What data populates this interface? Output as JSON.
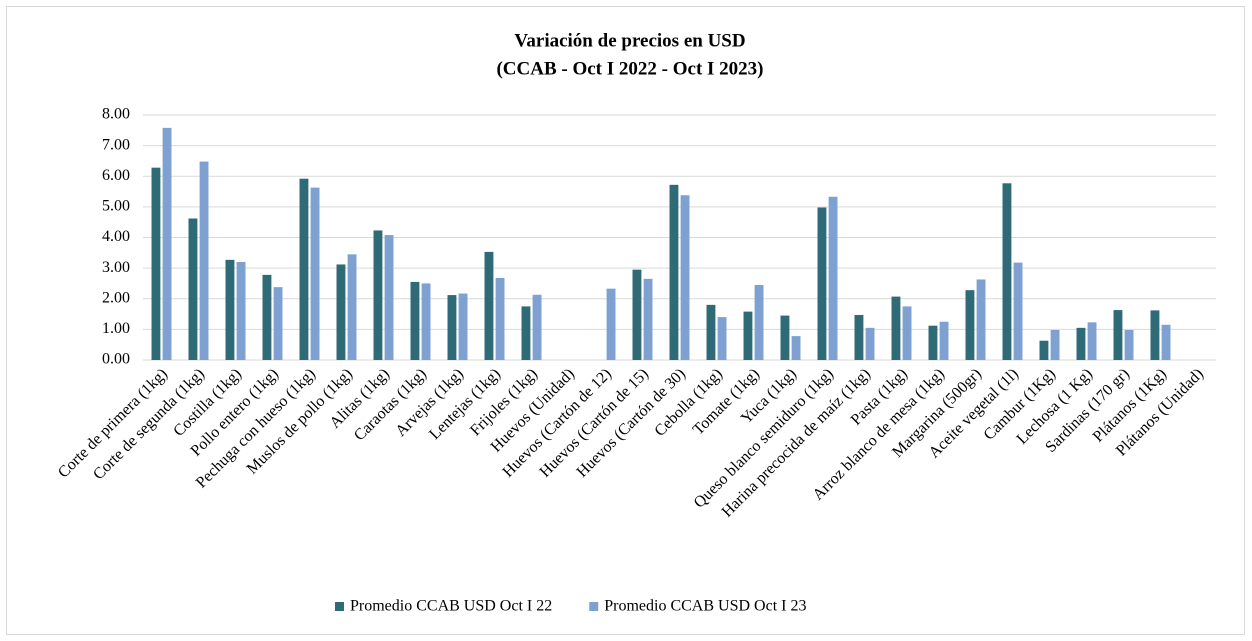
{
  "chart_data": {
    "type": "bar",
    "title": "Variación de precios en USD",
    "subtitle": "(CCAB - Oct I 2022 - Oct I 2023)",
    "categories": [
      "Corte de primera (1kg)",
      "Corte de segunda (1kg)",
      "Costilla (1kg)",
      "Pollo entero (1kg)",
      "Pechuga con hueso (1kg)",
      "Muslos de pollo (1kg)",
      "Alitas (1kg)",
      "Caraotas (1kg)",
      "Arvejas (1kg)",
      "Lentejas (1kg)",
      "Frijoles (1kg)",
      "Huevos (Unidad)",
      "Huevos (Cartón de 12)",
      "Huevos (Cartón de 15)",
      "Huevos (Cartón de 30)",
      "Cebolla (1kg)",
      "Tomate (1kg)",
      "Yuca (1kg)",
      "Queso blanco semiduro (1kg)",
      "Harina precocida de maíz (1kg)",
      "Pasta (1kg)",
      "Arroz blanco de mesa (1kg)",
      "Margarina (500gr)",
      "Aceite vegetal (1l)",
      "Cambur (1Kg)",
      "Lechosa (1 Kg)",
      "Sardinas (170 gr)",
      "Plátanos (1Kg)",
      "Plátanos (Unidad)"
    ],
    "series": [
      {
        "name": "Promedio CCAB USD Oct I 22",
        "color": "#2e6b76",
        "values": [
          6.28,
          4.62,
          3.27,
          2.78,
          5.92,
          3.12,
          4.23,
          2.55,
          2.12,
          3.53,
          1.75,
          null,
          null,
          2.95,
          5.72,
          1.8,
          1.58,
          1.45,
          4.98,
          1.47,
          2.07,
          1.12,
          2.28,
          5.77,
          0.63,
          1.05,
          1.63,
          1.62,
          null
        ]
      },
      {
        "name": "Promedio CCAB USD Oct I 23",
        "color": "#7fa1d2",
        "values": [
          7.58,
          6.48,
          3.2,
          2.38,
          5.63,
          3.45,
          4.08,
          2.5,
          2.17,
          2.68,
          2.13,
          null,
          2.33,
          2.65,
          5.38,
          1.4,
          2.45,
          0.78,
          5.33,
          1.05,
          1.75,
          1.25,
          2.63,
          3.18,
          0.98,
          1.23,
          0.98,
          1.15,
          null
        ]
      }
    ],
    "ylim": [
      0,
      8
    ],
    "yticks": [
      {
        "value": 0,
        "label": "0.00"
      },
      {
        "value": 1,
        "label": "1.00"
      },
      {
        "value": 2,
        "label": "2.00"
      },
      {
        "value": 3,
        "label": "3.00"
      },
      {
        "value": 4,
        "label": "4.00"
      },
      {
        "value": 5,
        "label": "5.00"
      },
      {
        "value": 6,
        "label": "6.00"
      },
      {
        "value": 7,
        "label": "7.00"
      },
      {
        "value": 8,
        "label": "8.00"
      }
    ],
    "grid": true,
    "legend": "bottom"
  }
}
